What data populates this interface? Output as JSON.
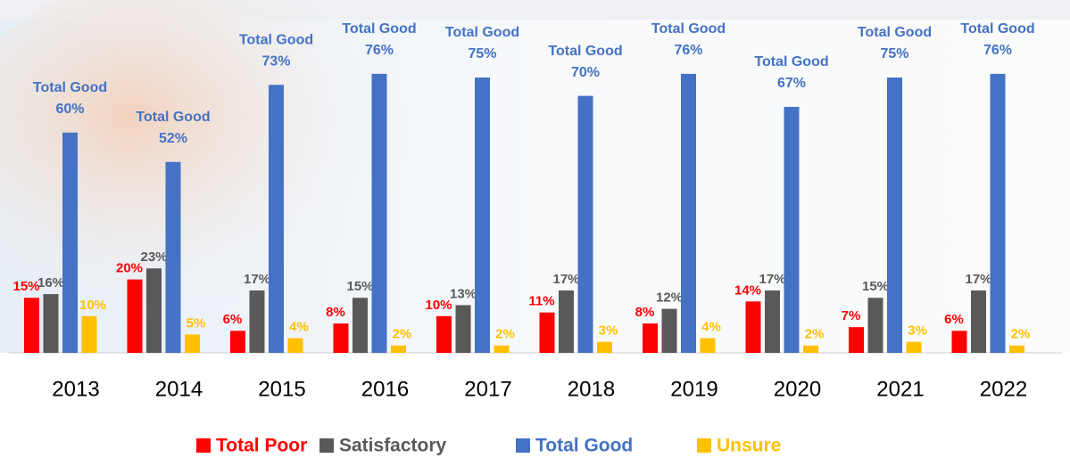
{
  "chart_data": {
    "type": "bar",
    "categories": [
      "2013",
      "2014",
      "2015",
      "2016",
      "2017",
      "2018",
      "2019",
      "2020",
      "2021",
      "2022"
    ],
    "series": [
      {
        "name": "Total Poor",
        "color": "#ff0000",
        "values": [
          15,
          20,
          6,
          8,
          10,
          11,
          8,
          14,
          7,
          6
        ],
        "value_labels": [
          "15%",
          "20%",
          "6%",
          "8%",
          "10%",
          "11%",
          "8%",
          "14%",
          "7%",
          "6%"
        ]
      },
      {
        "name": "Satisfactory",
        "color": "#595959",
        "values": [
          16,
          23,
          17,
          15,
          13,
          17,
          12,
          17,
          15,
          17
        ],
        "value_labels": [
          "16%",
          "23%",
          "17%",
          "15%",
          "13%",
          "17%",
          "12%",
          "17%",
          "15%",
          "17%"
        ]
      },
      {
        "name": "Total Good",
        "color": "#4472c4",
        "values": [
          60,
          52,
          73,
          76,
          75,
          70,
          76,
          67,
          75,
          76
        ],
        "value_labels": [
          "60%",
          "52%",
          "73%",
          "76%",
          "75%",
          "70%",
          "76%",
          "67%",
          "75%",
          "76%"
        ]
      },
      {
        "name": "Unsure",
        "color": "#ffc000",
        "values": [
          10,
          5,
          4,
          2,
          2,
          3,
          4,
          2,
          3,
          2
        ],
        "value_labels": [
          "10%",
          "5%",
          "4%",
          "2%",
          "2%",
          "3%",
          "4%",
          "2%",
          "3%",
          "2%"
        ]
      }
    ],
    "legend": "bottom"
  }
}
